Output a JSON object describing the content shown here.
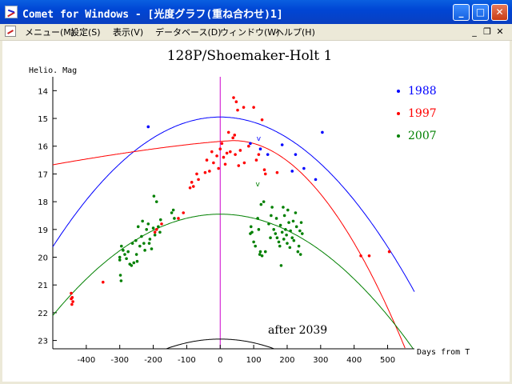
{
  "window": {
    "title": "Comet for Windows - [光度グラフ(重ね合わせ)1]"
  },
  "menu": {
    "items": [
      "メニュー(M)",
      "設定(S)",
      "表示(V)",
      "データベース(D)",
      "ウィンドウ(W)",
      "ヘルプ(H)"
    ]
  },
  "window_buttons": {
    "minimize": "_",
    "maximize": "□",
    "close": "✕"
  },
  "mdi_buttons": {
    "minimize": "_",
    "restore": "❐",
    "close": "✕"
  },
  "chart_data": {
    "type": "scatter",
    "title": "128P/Shoemaker-Holt 1",
    "ylabel": "Helio. Mag",
    "xlabel": "Days from T",
    "xlim": [
      -500,
      580
    ],
    "ylim": [
      23.3,
      13.5
    ],
    "x_ticks": [
      -400,
      -300,
      -200,
      -100,
      0,
      100,
      200,
      300,
      400,
      500
    ],
    "y_ticks": [
      14,
      15,
      16,
      17,
      18,
      19,
      20,
      21,
      22,
      23
    ],
    "legend_position": "top-right",
    "series": [
      {
        "name": "1988",
        "color": "#0000ff",
        "curve": {
          "peak": 14.95,
          "k": 1.87e-05
        },
        "points": [
          [
            -215,
            15.3
          ],
          [
            90,
            15.9
          ],
          [
            120,
            16.1
          ],
          [
            142,
            16.3
          ],
          [
            185,
            15.95
          ],
          [
            215,
            16.9
          ],
          [
            225,
            16.3
          ],
          [
            250,
            16.8
          ],
          [
            285,
            17.2
          ],
          [
            305,
            15.5
          ]
        ],
        "marker_v": [
          115,
          15.8
        ]
      },
      {
        "name": "1997",
        "color": "#ff0000",
        "curve": {
          "peak": 15.8,
          "pre_scale": 0.000215,
          "pre_pow": 1.32,
          "post_k": 2.85e-05
        },
        "points": [
          [
            -445,
            21.3
          ],
          [
            -445,
            21.5
          ],
          [
            -443,
            21.7
          ],
          [
            -442,
            21.45
          ],
          [
            -440,
            21.6
          ],
          [
            -350,
            20.9
          ],
          [
            -195,
            19.1
          ],
          [
            -190,
            19.0
          ],
          [
            -175,
            18.8
          ],
          [
            -125,
            18.6
          ],
          [
            -110,
            18.4
          ],
          [
            -90,
            17.5
          ],
          [
            -85,
            17.3
          ],
          [
            -80,
            17.45
          ],
          [
            -70,
            17.0
          ],
          [
            -65,
            17.2
          ],
          [
            -45,
            16.95
          ],
          [
            -40,
            16.5
          ],
          [
            -32,
            16.9
          ],
          [
            -25,
            16.2
          ],
          [
            -20,
            16.6
          ],
          [
            -10,
            16.35
          ],
          [
            -5,
            16.8
          ],
          [
            0,
            16.1
          ],
          [
            5,
            15.9
          ],
          [
            10,
            16.4
          ],
          [
            15,
            16.65
          ],
          [
            20,
            16.25
          ],
          [
            25,
            15.5
          ],
          [
            30,
            16.2
          ],
          [
            38,
            15.7
          ],
          [
            40,
            14.25
          ],
          [
            43,
            15.6
          ],
          [
            45,
            16.3
          ],
          [
            48,
            14.4
          ],
          [
            52,
            14.7
          ],
          [
            55,
            16.7
          ],
          [
            60,
            16.15
          ],
          [
            70,
            14.6
          ],
          [
            72,
            16.6
          ],
          [
            85,
            16.0
          ],
          [
            100,
            14.6
          ],
          [
            108,
            16.5
          ],
          [
            115,
            16.3
          ],
          [
            125,
            15.05
          ],
          [
            132,
            16.85
          ],
          [
            135,
            17.0
          ],
          [
            170,
            16.95
          ],
          [
            420,
            19.95
          ],
          [
            445,
            19.95
          ],
          [
            505,
            19.8
          ]
        ]
      },
      {
        "name": "2007",
        "color": "#008000",
        "curve": {
          "peak": 18.45,
          "k": 1.46e-05
        },
        "points": [
          [
            -300,
            20.0
          ],
          [
            -300,
            20.1
          ],
          [
            -298,
            20.65
          ],
          [
            -296,
            20.85
          ],
          [
            -295,
            19.6
          ],
          [
            -290,
            19.75
          ],
          [
            -285,
            19.9
          ],
          [
            -280,
            20.05
          ],
          [
            -275,
            19.8
          ],
          [
            -270,
            20.25
          ],
          [
            -265,
            20.3
          ],
          [
            -262,
            19.5
          ],
          [
            -258,
            20.2
          ],
          [
            -252,
            19.4
          ],
          [
            -250,
            19.9
          ],
          [
            -248,
            20.15
          ],
          [
            -245,
            18.9
          ],
          [
            -240,
            19.6
          ],
          [
            -235,
            19.25
          ],
          [
            -232,
            18.7
          ],
          [
            -228,
            19.5
          ],
          [
            -225,
            19.75
          ],
          [
            -220,
            19.0
          ],
          [
            -215,
            18.8
          ],
          [
            -212,
            19.5
          ],
          [
            -210,
            19.35
          ],
          [
            -205,
            19.7
          ],
          [
            -200,
            18.95
          ],
          [
            -198,
            17.8
          ],
          [
            -195,
            19.2
          ],
          [
            -190,
            18.0
          ],
          [
            -185,
            18.9
          ],
          [
            -180,
            19.1
          ],
          [
            -178,
            18.65
          ],
          [
            -145,
            18.4
          ],
          [
            -140,
            18.3
          ],
          [
            -137,
            18.6
          ],
          [
            90,
            19.15
          ],
          [
            92,
            18.9
          ],
          [
            95,
            19.1
          ],
          [
            100,
            19.45
          ],
          [
            105,
            19.6
          ],
          [
            112,
            18.6
          ],
          [
            115,
            19.0
          ],
          [
            118,
            19.9
          ],
          [
            120,
            19.8
          ],
          [
            122,
            18.1
          ],
          [
            125,
            19.95
          ],
          [
            130,
            18.0
          ],
          [
            135,
            19.8
          ],
          [
            145,
            18.8
          ],
          [
            150,
            19.3
          ],
          [
            152,
            18.5
          ],
          [
            155,
            18.2
          ],
          [
            160,
            19.0
          ],
          [
            165,
            19.15
          ],
          [
            168,
            18.6
          ],
          [
            170,
            19.3
          ],
          [
            175,
            19.45
          ],
          [
            178,
            19.6
          ],
          [
            180,
            18.85
          ],
          [
            182,
            20.3
          ],
          [
            185,
            19.1
          ],
          [
            188,
            18.2
          ],
          [
            190,
            19.35
          ],
          [
            192,
            18.5
          ],
          [
            195,
            19.0
          ],
          [
            198,
            19.2
          ],
          [
            200,
            19.5
          ],
          [
            202,
            18.3
          ],
          [
            205,
            18.75
          ],
          [
            208,
            19.65
          ],
          [
            210,
            19.05
          ],
          [
            215,
            19.3
          ],
          [
            218,
            18.7
          ],
          [
            220,
            19.4
          ],
          [
            225,
            18.4
          ],
          [
            228,
            18.9
          ],
          [
            232,
            19.8
          ],
          [
            235,
            19.6
          ],
          [
            238,
            19.05
          ],
          [
            240,
            19.9
          ],
          [
            242,
            18.75
          ],
          [
            245,
            19.15
          ]
        ],
        "marker_v": [
          112,
          17.45
        ]
      },
      {
        "name": "after 2039",
        "color": "#000000",
        "curve": {
          "peak": 22.95,
          "k": 1.34e-05
        }
      }
    ],
    "annotation": "after 2039",
    "marker_label": "v",
    "perihelion_line_color": "#cc00cc"
  }
}
